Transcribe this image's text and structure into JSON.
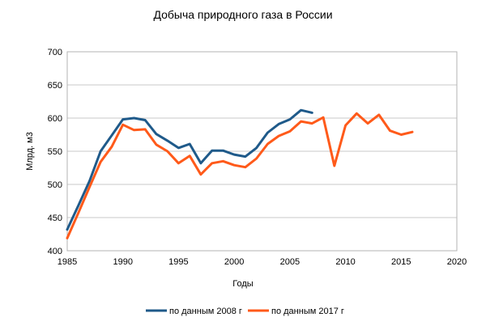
{
  "chart_data": {
    "type": "line",
    "title": "Добыча природного газа в России",
    "xlabel": "Годы",
    "ylabel": "Млрд. м3",
    "xlim": [
      1985,
      2020
    ],
    "ylim": [
      400,
      700
    ],
    "x_ticks": [
      1985,
      1990,
      1995,
      2000,
      2005,
      2010,
      2015,
      2020
    ],
    "y_ticks": [
      400,
      450,
      500,
      550,
      600,
      650,
      700
    ],
    "grid": "horizontal",
    "legend_position": "bottom",
    "series": [
      {
        "name": "по данным 2008 г",
        "color": "#1f5a8a",
        "x": [
          1985,
          1986,
          1987,
          1988,
          1989,
          1990,
          1991,
          1992,
          1993,
          1994,
          1995,
          1996,
          1997,
          1998,
          1999,
          2000,
          2001,
          2002,
          2003,
          2004,
          2005,
          2006,
          2007
        ],
        "y": [
          432,
          468,
          505,
          550,
          574,
          598,
          600,
          597,
          576,
          566,
          555,
          561,
          532,
          551,
          551,
          545,
          542,
          555,
          578,
          591,
          598,
          612,
          608
        ]
      },
      {
        "name": "по данным 2017 г",
        "color": "#ff5a1a",
        "x": [
          1985,
          1986,
          1987,
          1988,
          1989,
          1990,
          1991,
          1992,
          1993,
          1994,
          1995,
          1996,
          1997,
          1998,
          1999,
          2000,
          2001,
          2002,
          2003,
          2004,
          2005,
          2006,
          2007,
          2008,
          2009,
          2010,
          2011,
          2012,
          2013,
          2014,
          2015,
          2016
        ],
        "y": [
          419,
          457,
          496,
          534,
          557,
          590,
          582,
          583,
          560,
          550,
          532,
          543,
          515,
          532,
          535,
          529,
          526,
          539,
          561,
          573,
          580,
          595,
          592,
          601,
          528,
          589,
          607,
          592,
          605,
          581,
          575,
          579
        ]
      }
    ]
  }
}
